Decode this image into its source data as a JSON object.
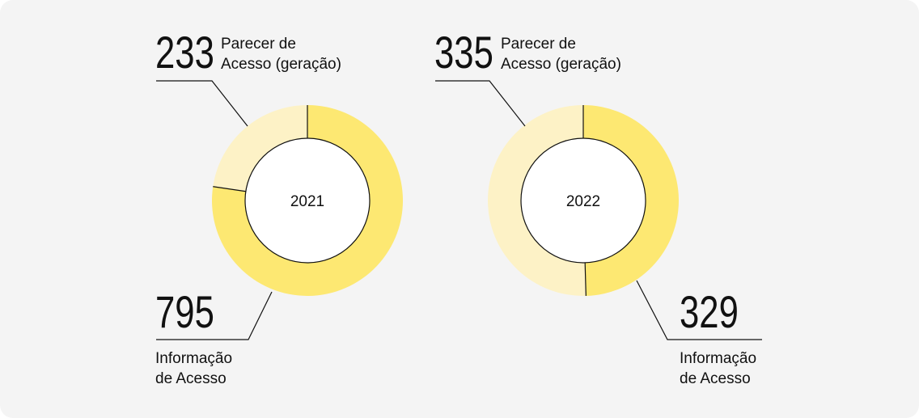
{
  "colors": {
    "background": "#f4f4f4",
    "primary": "#fde872",
    "secondary": "#fdf2c6",
    "line": "#111111",
    "center": "#ffffff"
  },
  "chart_data": [
    {
      "type": "pie",
      "title": "2021",
      "categories": [
        "Informação de Acesso",
        "Parecer de Acesso (geração)"
      ],
      "values": [
        795,
        233
      ],
      "labels": {
        "primary_value": "795",
        "primary_line1": "Informação",
        "primary_line2": "de Acesso",
        "secondary_value": "233",
        "secondary_line1": "Parecer de",
        "secondary_line2": "Acesso (geração)"
      }
    },
    {
      "type": "pie",
      "title": "2022",
      "categories": [
        "Informação de Acesso",
        "Parecer de Acesso (geração)"
      ],
      "values": [
        329,
        335
      ],
      "labels": {
        "primary_value": "329",
        "primary_line1": "Informação",
        "primary_line2": "de Acesso",
        "secondary_value": "335",
        "secondary_line1": "Parecer de",
        "secondary_line2": "Acesso (geração)"
      }
    }
  ]
}
